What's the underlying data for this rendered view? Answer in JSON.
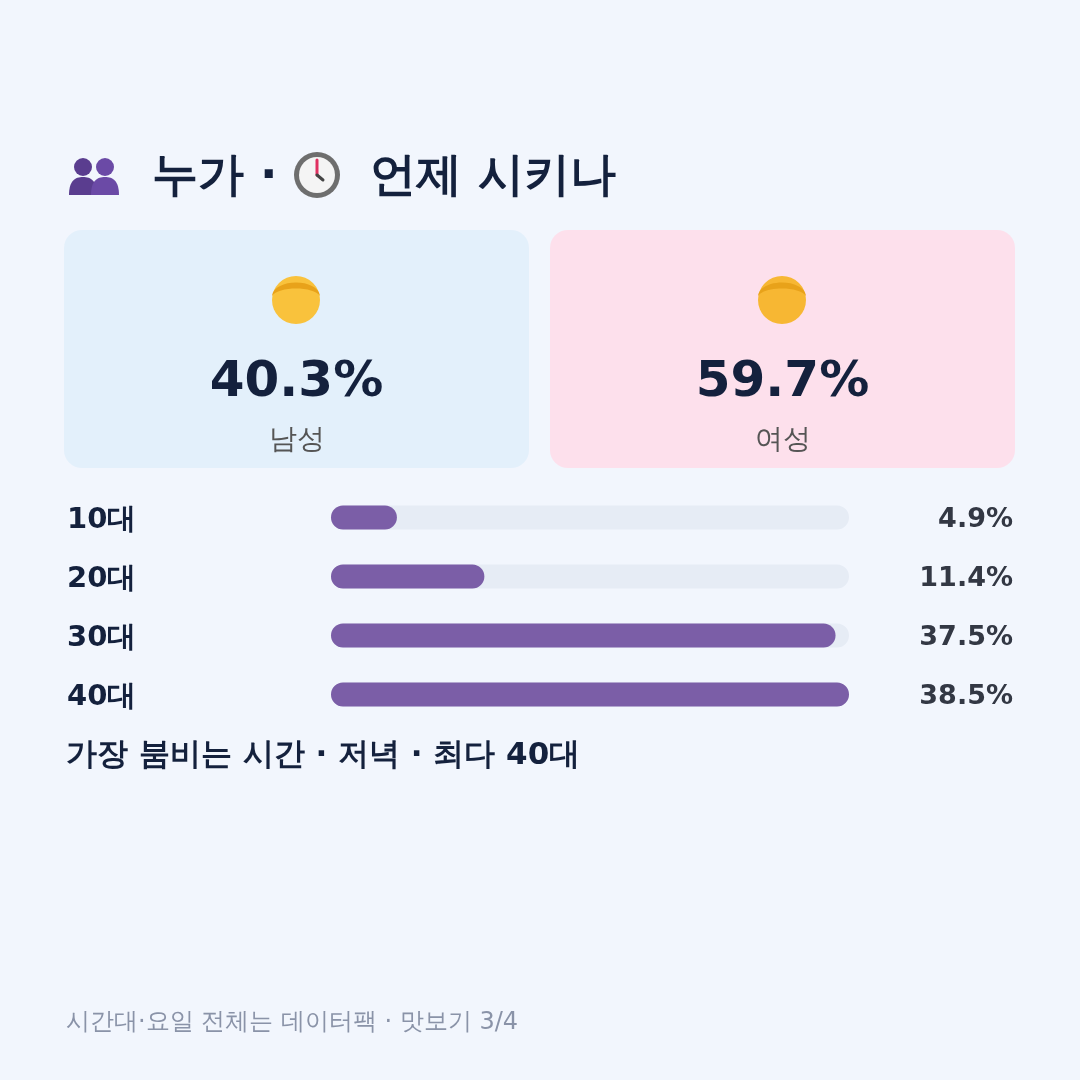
{
  "chart_data": [
    {
      "type": "other",
      "title": "누가 · 언제 시키나",
      "categories": [
        "남성",
        "여성"
      ],
      "value_labels": [
        "40.3%",
        "59.7%"
      ],
      "colors": [
        "#e3f0fb",
        "#fde0ec"
      ]
    },
    {
      "type": "bar",
      "orientation": "horizontal",
      "categories": [
        "10대",
        "20대",
        "30대",
        "40대"
      ],
      "values": [
        4.9,
        11.4,
        37.5,
        38.5
      ],
      "value_labels": [
        "4.9%",
        "11.4%",
        "37.5%",
        "38.5%"
      ],
      "color": "#7b5ea7",
      "xlim": [
        0,
        38.5
      ],
      "tick_labels": "y",
      "annotations": [
        "가장 붐비는 시간 · 저녁 · 최다 40대",
        "시간대·요일 전체는 데이터팩 · 맛보기 3/4"
      ]
    }
  ]
}
